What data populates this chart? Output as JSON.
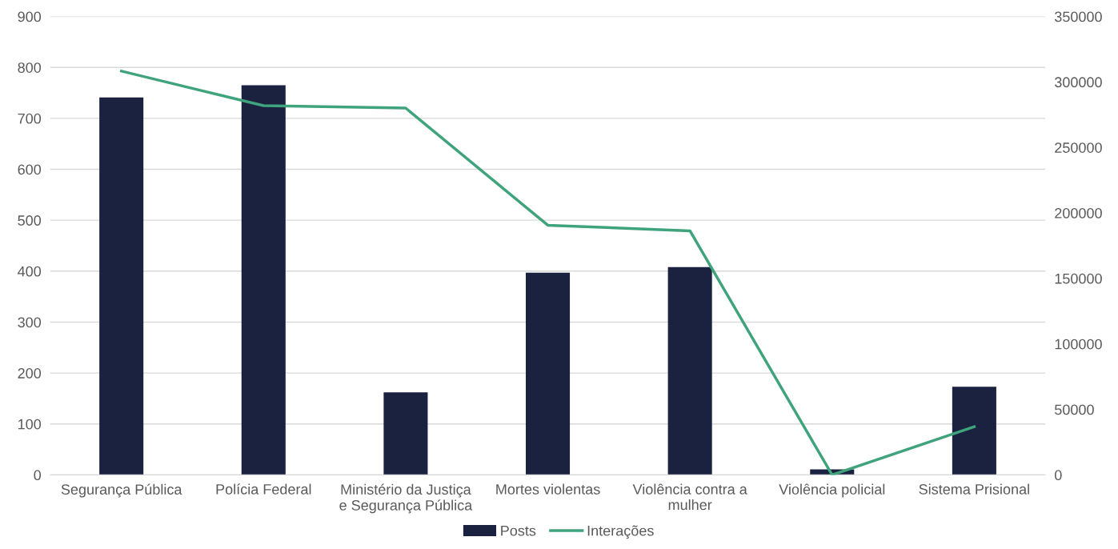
{
  "chart_data": {
    "type": "bar",
    "categories": [
      "Segurança Pública",
      "Polícia Federal",
      "Ministério da Justiça\ne Segurança Pública",
      "Mortes violentas",
      "Violência contra a\nmulher",
      "Violência policial",
      "Sistema Prisional"
    ],
    "series": [
      {
        "name": "Posts",
        "color": "#1a2240",
        "values": [
          741,
          765,
          162,
          397,
          408,
          11,
          173
        ]
      },
      {
        "name": "Interações",
        "type": "line",
        "axis": "y2",
        "color": "#3fa37c",
        "values": [
          308300,
          281900,
          280100,
          190600,
          186300,
          0,
          36800
        ]
      }
    ],
    "ylim": [
      0,
      900
    ],
    "yticks": [
      0,
      100,
      200,
      300,
      400,
      500,
      600,
      700,
      800,
      900
    ],
    "y2lim": [
      0,
      350000
    ],
    "y2ticks": [
      0,
      50000,
      100000,
      150000,
      200000,
      250000,
      300000,
      350000
    ],
    "grid": "y",
    "legend": "bottom",
    "marker": "none",
    "line_style": "solid"
  }
}
